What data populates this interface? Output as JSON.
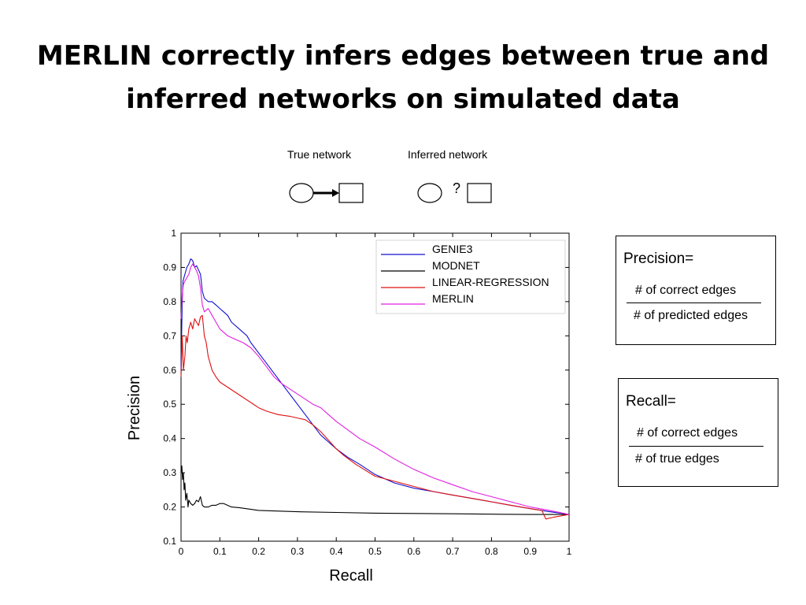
{
  "title": {
    "line1": "MERLIN correctly infers edges between true and",
    "line2": "inferred networks on simulated data"
  },
  "networks": {
    "true_label": "True network",
    "inferred_label": "Inferred network",
    "unknown_mark": "?"
  },
  "precision_box": {
    "heading": "Precision=",
    "numerator": "# of correct edges",
    "denominator": "# of predicted edges"
  },
  "recall_box": {
    "heading": "Recall=",
    "numerator": "# of correct edges",
    "denominator": "# of true edges"
  },
  "chart_data": {
    "type": "line",
    "title": "",
    "xlabel": "Recall",
    "ylabel": "Precision",
    "xlim": [
      0,
      1
    ],
    "ylim": [
      0.1,
      1
    ],
    "xticks": [
      0,
      0.1,
      0.2,
      0.3,
      0.4,
      0.5,
      0.6,
      0.7,
      0.8,
      0.9,
      1
    ],
    "xtick_labels": [
      "0",
      "0.1",
      "0.2",
      "0.3",
      "0.4",
      "0.5",
      "0.6",
      "0.7",
      "0.8",
      "0.9",
      "1"
    ],
    "yticks": [
      0.1,
      0.2,
      0.3,
      0.4,
      0.5,
      0.6,
      0.7,
      0.8,
      0.9,
      1
    ],
    "ytick_labels": [
      "0.1",
      "0.2",
      "0.3",
      "0.4",
      "0.5",
      "0.6",
      "0.7",
      "0.8",
      "0.9",
      "1"
    ],
    "grid": false,
    "legend_position": "top-right",
    "series": [
      {
        "name": "GENIE3",
        "color": "#1010d0",
        "points": [
          [
            0,
            0.6
          ],
          [
            0.003,
            0.8
          ],
          [
            0.005,
            0.86
          ],
          [
            0.01,
            0.88
          ],
          [
            0.015,
            0.9
          ],
          [
            0.02,
            0.91
          ],
          [
            0.025,
            0.925
          ],
          [
            0.03,
            0.92
          ],
          [
            0.035,
            0.9
          ],
          [
            0.04,
            0.905
          ],
          [
            0.05,
            0.88
          ],
          [
            0.055,
            0.83
          ],
          [
            0.06,
            0.81
          ],
          [
            0.07,
            0.8
          ],
          [
            0.08,
            0.8
          ],
          [
            0.09,
            0.79
          ],
          [
            0.1,
            0.78
          ],
          [
            0.11,
            0.77
          ],
          [
            0.12,
            0.76
          ],
          [
            0.13,
            0.74
          ],
          [
            0.15,
            0.72
          ],
          [
            0.17,
            0.7
          ],
          [
            0.18,
            0.68
          ],
          [
            0.2,
            0.65
          ],
          [
            0.22,
            0.62
          ],
          [
            0.24,
            0.59
          ],
          [
            0.26,
            0.56
          ],
          [
            0.28,
            0.53
          ],
          [
            0.3,
            0.5
          ],
          [
            0.32,
            0.47
          ],
          [
            0.34,
            0.44
          ],
          [
            0.36,
            0.41
          ],
          [
            0.38,
            0.39
          ],
          [
            0.4,
            0.37
          ],
          [
            0.43,
            0.345
          ],
          [
            0.46,
            0.325
          ],
          [
            0.5,
            0.295
          ],
          [
            0.55,
            0.27
          ],
          [
            0.6,
            0.255
          ],
          [
            0.65,
            0.245
          ],
          [
            0.7,
            0.235
          ],
          [
            0.75,
            0.225
          ],
          [
            0.8,
            0.215
          ],
          [
            0.85,
            0.205
          ],
          [
            0.9,
            0.195
          ],
          [
            0.95,
            0.186
          ],
          [
            1,
            0.178
          ]
        ]
      },
      {
        "name": "MODNET",
        "color": "#000000",
        "points": [
          [
            0,
            0.3
          ],
          [
            0.002,
            0.32
          ],
          [
            0.004,
            0.28
          ],
          [
            0.006,
            0.3
          ],
          [
            0.008,
            0.25
          ],
          [
            0.01,
            0.27
          ],
          [
            0.012,
            0.22
          ],
          [
            0.015,
            0.24
          ],
          [
            0.018,
            0.2
          ],
          [
            0.02,
            0.22
          ],
          [
            0.025,
            0.21
          ],
          [
            0.03,
            0.205
          ],
          [
            0.035,
            0.21
          ],
          [
            0.04,
            0.22
          ],
          [
            0.045,
            0.215
          ],
          [
            0.05,
            0.23
          ],
          [
            0.055,
            0.205
          ],
          [
            0.06,
            0.2
          ],
          [
            0.07,
            0.2
          ],
          [
            0.08,
            0.205
          ],
          [
            0.09,
            0.205
          ],
          [
            0.1,
            0.21
          ],
          [
            0.11,
            0.21
          ],
          [
            0.13,
            0.2
          ],
          [
            0.15,
            0.198
          ],
          [
            0.2,
            0.19
          ],
          [
            0.3,
            0.186
          ],
          [
            0.4,
            0.184
          ],
          [
            0.5,
            0.182
          ],
          [
            0.6,
            0.181
          ],
          [
            0.7,
            0.18
          ],
          [
            0.8,
            0.179
          ],
          [
            0.9,
            0.178
          ],
          [
            1,
            0.178
          ]
        ]
      },
      {
        "name": "LINEAR-REGRESSION",
        "color": "#e01010",
        "points": [
          [
            0,
            0.58
          ],
          [
            0.003,
            0.7
          ],
          [
            0.006,
            0.6
          ],
          [
            0.01,
            0.64
          ],
          [
            0.013,
            0.7
          ],
          [
            0.016,
            0.68
          ],
          [
            0.02,
            0.72
          ],
          [
            0.025,
            0.74
          ],
          [
            0.03,
            0.72
          ],
          [
            0.035,
            0.75
          ],
          [
            0.04,
            0.74
          ],
          [
            0.045,
            0.73
          ],
          [
            0.05,
            0.755
          ],
          [
            0.055,
            0.76
          ],
          [
            0.06,
            0.7
          ],
          [
            0.065,
            0.68
          ],
          [
            0.07,
            0.64
          ],
          [
            0.08,
            0.6
          ],
          [
            0.09,
            0.58
          ],
          [
            0.1,
            0.565
          ],
          [
            0.12,
            0.55
          ],
          [
            0.14,
            0.535
          ],
          [
            0.16,
            0.52
          ],
          [
            0.18,
            0.505
          ],
          [
            0.2,
            0.49
          ],
          [
            0.22,
            0.48
          ],
          [
            0.25,
            0.47
          ],
          [
            0.28,
            0.465
          ],
          [
            0.3,
            0.46
          ],
          [
            0.32,
            0.455
          ],
          [
            0.34,
            0.44
          ],
          [
            0.36,
            0.42
          ],
          [
            0.38,
            0.395
          ],
          [
            0.4,
            0.37
          ],
          [
            0.42,
            0.35
          ],
          [
            0.45,
            0.325
          ],
          [
            0.5,
            0.29
          ],
          [
            0.55,
            0.275
          ],
          [
            0.6,
            0.26
          ],
          [
            0.65,
            0.245
          ],
          [
            0.7,
            0.235
          ],
          [
            0.75,
            0.225
          ],
          [
            0.8,
            0.215
          ],
          [
            0.85,
            0.205
          ],
          [
            0.9,
            0.195
          ],
          [
            0.93,
            0.19
          ],
          [
            0.94,
            0.165
          ],
          [
            0.96,
            0.17
          ],
          [
            1,
            0.178
          ]
        ]
      },
      {
        "name": "MERLIN",
        "color": "#e020e0",
        "points": [
          [
            0,
            0.75
          ],
          [
            0.003,
            0.82
          ],
          [
            0.006,
            0.85
          ],
          [
            0.01,
            0.86
          ],
          [
            0.015,
            0.87
          ],
          [
            0.02,
            0.88
          ],
          [
            0.025,
            0.9
          ],
          [
            0.03,
            0.91
          ],
          [
            0.035,
            0.9
          ],
          [
            0.04,
            0.89
          ],
          [
            0.045,
            0.875
          ],
          [
            0.05,
            0.84
          ],
          [
            0.055,
            0.79
          ],
          [
            0.06,
            0.77
          ],
          [
            0.07,
            0.78
          ],
          [
            0.08,
            0.76
          ],
          [
            0.09,
            0.74
          ],
          [
            0.1,
            0.72
          ],
          [
            0.12,
            0.7
          ],
          [
            0.14,
            0.69
          ],
          [
            0.16,
            0.68
          ],
          [
            0.18,
            0.665
          ],
          [
            0.2,
            0.64
          ],
          [
            0.22,
            0.61
          ],
          [
            0.24,
            0.58
          ],
          [
            0.26,
            0.56
          ],
          [
            0.28,
            0.545
          ],
          [
            0.3,
            0.53
          ],
          [
            0.32,
            0.515
          ],
          [
            0.34,
            0.5
          ],
          [
            0.36,
            0.49
          ],
          [
            0.38,
            0.47
          ],
          [
            0.4,
            0.45
          ],
          [
            0.43,
            0.425
          ],
          [
            0.46,
            0.4
          ],
          [
            0.5,
            0.375
          ],
          [
            0.55,
            0.34
          ],
          [
            0.6,
            0.31
          ],
          [
            0.65,
            0.285
          ],
          [
            0.7,
            0.265
          ],
          [
            0.75,
            0.245
          ],
          [
            0.8,
            0.23
          ],
          [
            0.85,
            0.215
          ],
          [
            0.9,
            0.2
          ],
          [
            0.95,
            0.19
          ],
          [
            1,
            0.178
          ]
        ]
      }
    ]
  }
}
